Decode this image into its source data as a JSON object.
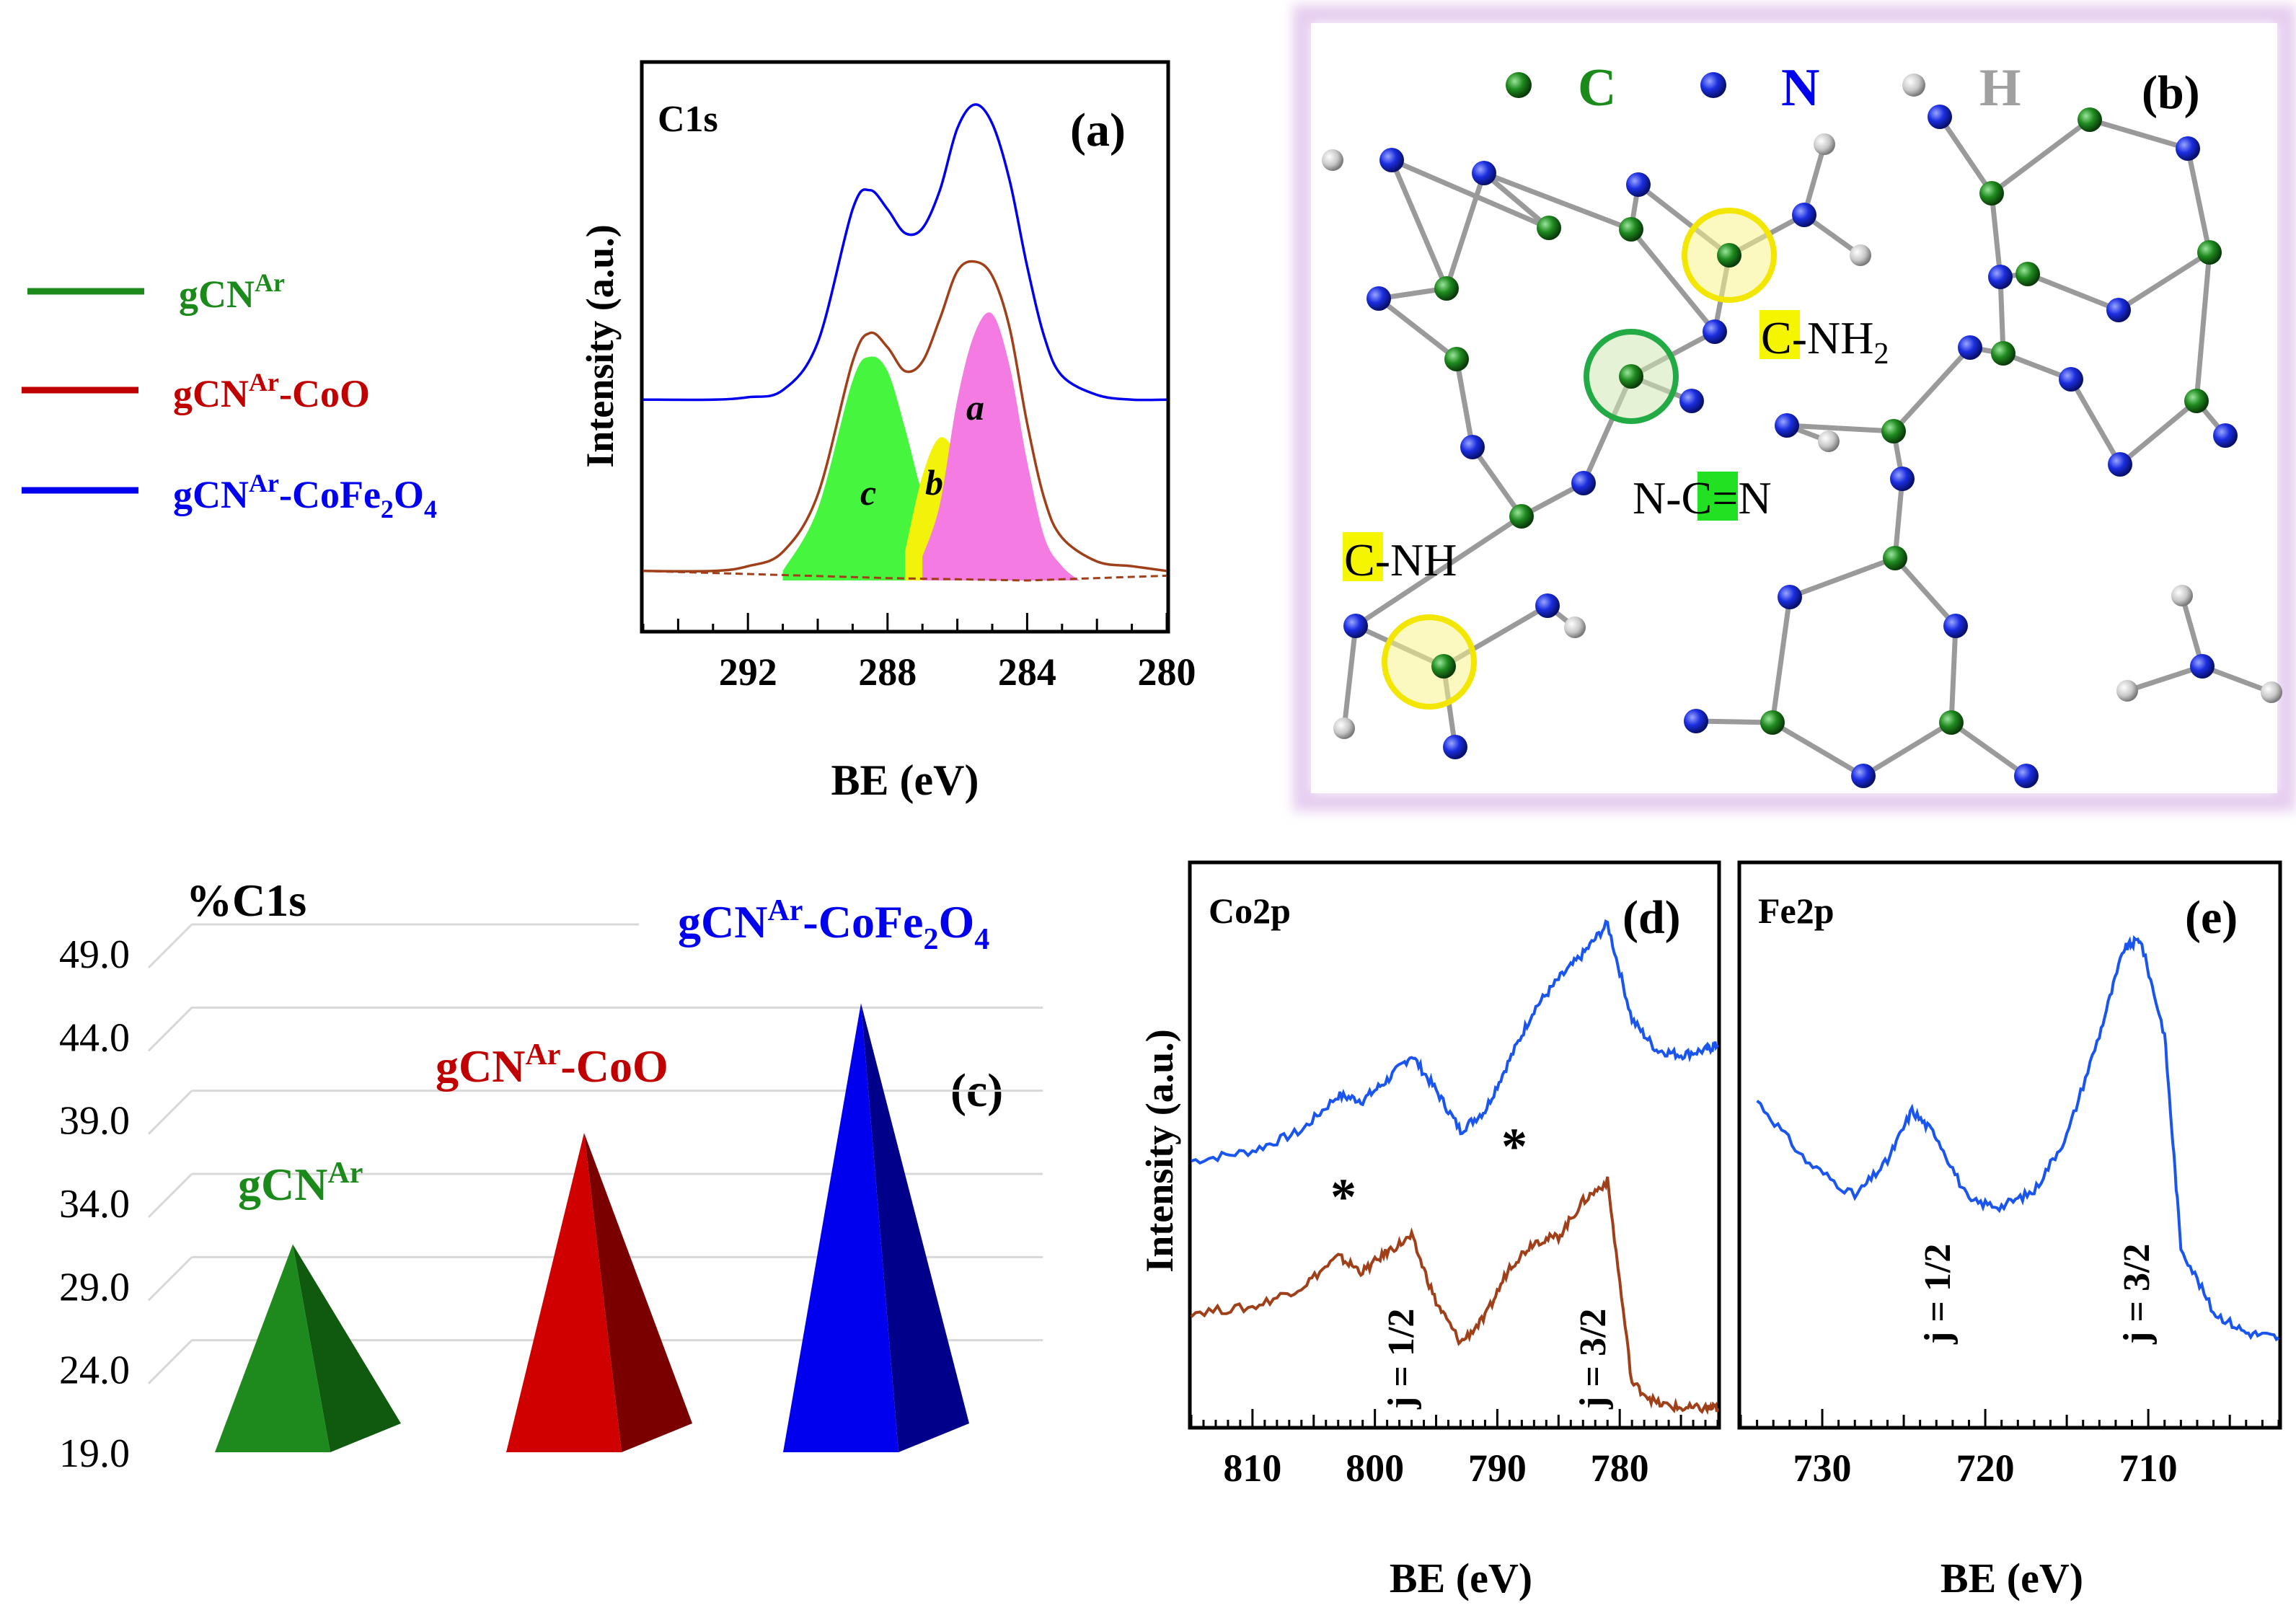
{
  "colors": {
    "green": "#1b8a1b",
    "red": "#c00000",
    "blue": "#0000ee",
    "brown": "#a0401a",
    "lineblue": "#1a55f0",
    "c_green": "#46f53e",
    "c_yellow": "#f2f20a",
    "c_pink": "#f47be2"
  },
  "legend": {
    "items": [
      {
        "label": "gCN",
        "sup": "Ar",
        "suffix": "",
        "color": "green"
      },
      {
        "label": "gCN",
        "sup": "Ar",
        "suffix": "-CoO",
        "color": "red"
      },
      {
        "label": "gCN",
        "sup": "Ar",
        "suffix": "-CoFe",
        "sub1": "2",
        "mid": "O",
        "sub2": "4",
        "color": "blue"
      }
    ]
  },
  "panel_a": {
    "tag": "(a)",
    "title": "C1s",
    "xlabel": "BE (eV)",
    "ylabel": "Intensity (a.u.)",
    "ticks": [
      "292",
      "288",
      "284",
      "280"
    ],
    "peak_labels": {
      "a": "a",
      "b": "b",
      "c": "c"
    }
  },
  "panel_b": {
    "tag": "(b)",
    "legend": [
      {
        "sym": "C"
      },
      {
        "sym": "N"
      },
      {
        "sym": "H"
      }
    ],
    "labels": {
      "cnh2_c": "C",
      "cnh2_rest": "-NH",
      "cnh2_sub": "2",
      "ncn_n1": "N-",
      "ncn_c": "C",
      "ncn_rest": "=N",
      "cnh_c": "C",
      "cnh_rest": "-NH"
    }
  },
  "panel_c": {
    "tag": "(c)",
    "title": "%C1s",
    "yticks": [
      "49.0",
      "44.0",
      "39.0",
      "34.0",
      "29.0",
      "24.0",
      "19.0"
    ],
    "labels": [
      {
        "main": "gCN",
        "sup": "Ar",
        "suffix": ""
      },
      {
        "main": "gCN",
        "sup": "Ar",
        "suffix": "-CoO"
      },
      {
        "main": "gCN",
        "sup": "Ar",
        "suffix": "-CoFe",
        "sub1": "2",
        "mid": "O",
        "sub2": "4"
      }
    ]
  },
  "panel_d": {
    "tag": "(d)",
    "title": "Co2p",
    "xlabel": "BE (eV)",
    "ylabel": "Intensity (a.u.)",
    "ticks": [
      "810",
      "800",
      "790",
      "780"
    ],
    "j1": "j = 1/2",
    "j2": "j = 3/2",
    "star": "*"
  },
  "panel_e": {
    "tag": "(e)",
    "title": "Fe2p",
    "xlabel": "BE (eV)",
    "ticks": [
      "730",
      "720",
      "710"
    ],
    "j1": "j = 1/2",
    "j2": "j = 3/2"
  },
  "chart_data": [
    {
      "type": "line",
      "title": "C1s",
      "xlabel": "BE (eV)",
      "ylabel": "Intensity (a.u.)",
      "xlim": [
        295,
        280
      ],
      "series": [
        {
          "name": "gCNAr-CoFe2O4",
          "color": "blue",
          "x": [
            295,
            293,
            292,
            291,
            290,
            289,
            288.5,
            288,
            287.5,
            287,
            286.5,
            286,
            285.5,
            285,
            284.5,
            284,
            283.5,
            283,
            282,
            281,
            280
          ],
          "y": [
            0.38,
            0.38,
            0.385,
            0.4,
            0.5,
            0.78,
            0.82,
            0.78,
            0.73,
            0.74,
            0.82,
            0.95,
            1.0,
            0.96,
            0.84,
            0.66,
            0.51,
            0.43,
            0.39,
            0.38,
            0.38
          ]
        },
        {
          "name": "gCNAr-CoO",
          "color": "brown",
          "x": [
            295,
            293,
            292,
            291,
            290,
            289,
            288.5,
            288,
            287.5,
            287,
            286.5,
            286,
            285.5,
            285,
            284.5,
            284,
            283.5,
            283,
            282,
            281,
            280
          ],
          "y": [
            0.02,
            0.02,
            0.03,
            0.06,
            0.18,
            0.46,
            0.52,
            0.49,
            0.44,
            0.46,
            0.55,
            0.65,
            0.67,
            0.64,
            0.53,
            0.33,
            0.17,
            0.09,
            0.04,
            0.03,
            0.02
          ]
        },
        {
          "name": "c",
          "color": "c_green",
          "x": [
            291,
            290,
            289,
            288.5,
            288,
            287.5,
            287,
            286.5,
            286,
            285.5,
            285
          ],
          "y": [
            0.02,
            0.15,
            0.42,
            0.47,
            0.44,
            0.32,
            0.18,
            0.08,
            0.04,
            0.02,
            0.0
          ]
        },
        {
          "name": "b",
          "color": "c_yellow",
          "x": [
            287.5,
            287,
            286.5,
            286,
            285.5,
            285,
            284.5
          ],
          "y": [
            0.06,
            0.22,
            0.3,
            0.26,
            0.16,
            0.07,
            0.02
          ]
        },
        {
          "name": "a",
          "color": "c_pink",
          "x": [
            287,
            286.5,
            286,
            285.5,
            285,
            284.5,
            284,
            283.5,
            283,
            282.5
          ],
          "y": [
            0.05,
            0.16,
            0.38,
            0.52,
            0.56,
            0.45,
            0.25,
            0.09,
            0.03,
            0.0
          ]
        }
      ]
    },
    {
      "type": "bar",
      "title": "%C1s",
      "categories": [
        "gCNAr",
        "gCNAr-CoO",
        "gCNAr-CoFe2O4"
      ],
      "values": [
        31.5,
        38.2,
        46.0
      ],
      "ylim": [
        19,
        49
      ],
      "colors": [
        "green",
        "red",
        "blue"
      ]
    },
    {
      "type": "line",
      "title": "Co2p",
      "xlabel": "BE (eV)",
      "ylabel": "Intensity (a.u.)",
      "xlim": [
        815,
        772
      ],
      "series": [
        {
          "name": "gCNAr-CoFe2O4",
          "color": "lineblue",
          "x": [
            815,
            810,
            806,
            803,
            801,
            799,
            797,
            795,
            793,
            791,
            789,
            787,
            785,
            783,
            781,
            779,
            777,
            775,
            773,
            772
          ],
          "y": [
            0.5,
            0.52,
            0.56,
            0.63,
            0.62,
            0.66,
            0.71,
            0.64,
            0.56,
            0.6,
            0.7,
            0.8,
            0.86,
            0.91,
            0.97,
            0.78,
            0.72,
            0.71,
            0.72,
            0.73
          ]
        },
        {
          "name": "gCNAr-CoO",
          "color": "brown",
          "x": [
            815,
            810,
            806,
            803,
            801,
            799,
            797,
            795,
            793,
            791,
            789,
            787,
            785,
            783,
            781,
            779,
            777,
            775,
            773,
            772
          ],
          "y": [
            0.2,
            0.21,
            0.25,
            0.31,
            0.28,
            0.32,
            0.35,
            0.22,
            0.14,
            0.19,
            0.29,
            0.34,
            0.35,
            0.42,
            0.46,
            0.06,
            0.02,
            0.01,
            0.01,
            0.01
          ]
        }
      ]
    },
    {
      "type": "line",
      "title": "Fe2p",
      "xlabel": "BE (eV)",
      "xlim": [
        735,
        702
      ],
      "series": [
        {
          "name": "gCNAr-CoFe2O4",
          "color": "lineblue",
          "x": [
            734,
            731,
            728,
            726,
            724.5,
            723,
            721,
            719,
            717,
            715,
            713,
            711.5,
            710.5,
            709,
            708,
            706,
            704,
            702
          ],
          "y": [
            0.62,
            0.5,
            0.43,
            0.5,
            0.6,
            0.55,
            0.42,
            0.41,
            0.44,
            0.55,
            0.75,
            0.92,
            0.94,
            0.75,
            0.33,
            0.2,
            0.16,
            0.15
          ]
        }
      ]
    }
  ]
}
